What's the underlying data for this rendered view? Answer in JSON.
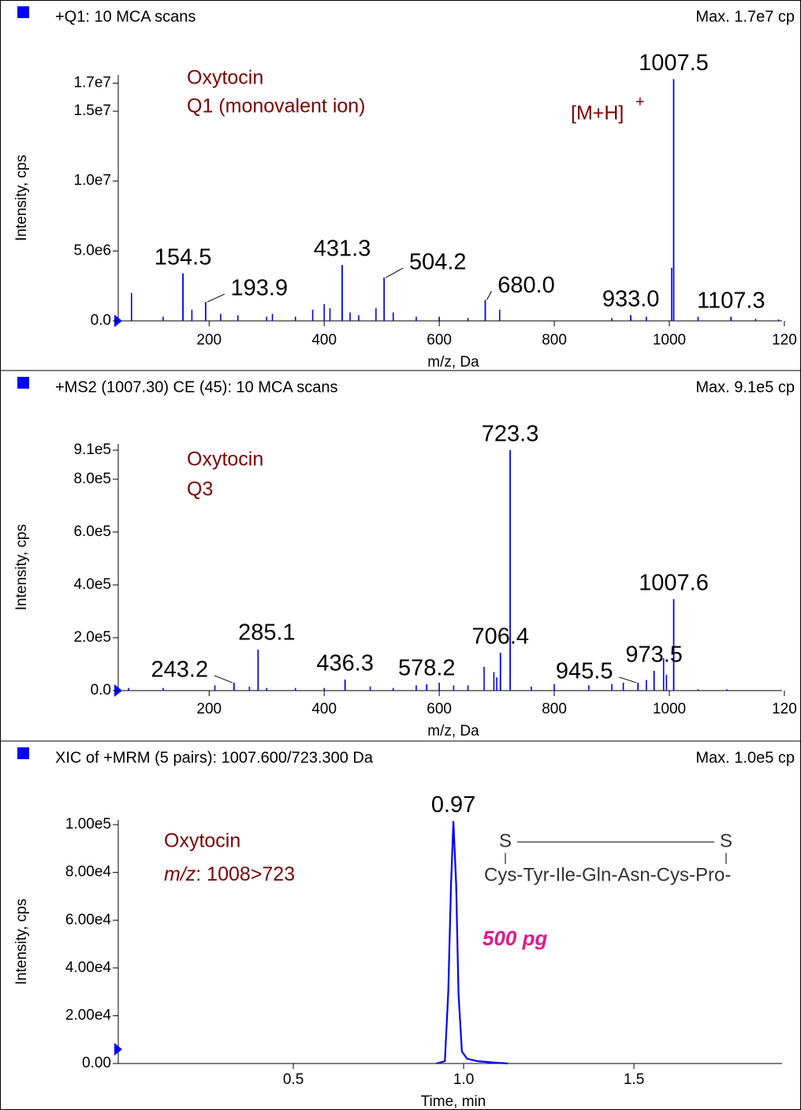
{
  "chart_data": [
    {
      "type": "spectrum",
      "header": "+Q1: 10 MCA scans",
      "max_label": "Max. 1.7e7 cp",
      "ylabel": "Intensity, cps",
      "xlabel": "m/z, Da",
      "color": "#0000ff",
      "xlim": [
        42,
        1196
      ],
      "ylim": [
        0,
        17600000
      ],
      "xticks": [
        200,
        400,
        600,
        800,
        1000,
        {
          "value": 1200,
          "label": "120"
        }
      ],
      "yticks": [
        {
          "value": 0,
          "label": "0.0"
        },
        {
          "value": 5000000,
          "label": "5.0e6"
        },
        {
          "value": 10000000,
          "label": "1.0e7"
        },
        {
          "value": 15000000,
          "label": "1.5e7"
        },
        {
          "value": 17000000,
          "label": "1.7e7"
        }
      ],
      "annotations": [
        "Oxytocin",
        "Q1 (monovalent ion)"
      ],
      "ion_label": "[M+H]",
      "ion_charge": "+",
      "peaks": {
        "x": [
          65,
          120,
          170,
          220,
          250,
          300,
          310,
          350,
          380,
          400,
          410,
          445,
          460,
          490,
          520,
          560,
          600,
          650,
          705,
          900,
          960,
          1004,
          1050,
          1150,
          1190
        ],
        "values": [
          2000000,
          300000,
          800000,
          500000,
          400000,
          300000,
          500000,
          300000,
          800000,
          1200000,
          900000,
          600000,
          400000,
          900000,
          600000,
          300000,
          300000,
          200000,
          800000,
          200000,
          300000,
          3800000,
          300000,
          150000,
          100000
        ]
      },
      "labeled_peaks": [
        {
          "x": 1007.5,
          "value": 17300000,
          "label": "1007.5"
        },
        {
          "x": 154.5,
          "value": 3400000,
          "label": "154.5"
        },
        {
          "x": 193.9,
          "value": 1350000,
          "label": "193.9"
        },
        {
          "x": 431.3,
          "value": 4000000,
          "label": "431.3"
        },
        {
          "x": 504.2,
          "value": 3100000,
          "label": "504.2"
        },
        {
          "x": 680.0,
          "value": 1500000,
          "label": "680.0"
        },
        {
          "x": 933.0,
          "value": 400000,
          "label": "933.0"
        },
        {
          "x": 1107.3,
          "value": 300000,
          "label": "1107.3"
        }
      ]
    },
    {
      "type": "spectrum",
      "header": "+MS2 (1007.30) CE (45): 10 MCA scans",
      "max_label": "Max. 9.1e5 cp",
      "ylabel": "Intensity, cps",
      "xlabel": "m/z, Da",
      "color": "#0000ff",
      "xlim": [
        42,
        1196
      ],
      "ylim": [
        0,
        934000
      ],
      "xticks": [
        200,
        400,
        600,
        800,
        1000,
        {
          "value": 1200,
          "label": "120"
        }
      ],
      "yticks": [
        {
          "value": 0,
          "label": "0.0"
        },
        {
          "value": 200000,
          "label": "2.0e5"
        },
        {
          "value": 400000,
          "label": "4.0e5"
        },
        {
          "value": 600000,
          "label": "6.0e5"
        },
        {
          "value": 800000,
          "label": "8.0e5"
        },
        {
          "value": 910000,
          "label": "9.1e5"
        }
      ],
      "annotations": [
        "Oxytocin",
        "Q3"
      ],
      "peaks": {
        "x": [
          60,
          120,
          210,
          270,
          300,
          350,
          400,
          480,
          520,
          560,
          600,
          625,
          650,
          678,
          695,
          700,
          760,
          800,
          860,
          900,
          920,
          960,
          990,
          995,
          1050,
          1100
        ],
        "values": [
          10000,
          10000,
          20000,
          15000,
          10000,
          10000,
          10000,
          15000,
          10000,
          20000,
          30000,
          20000,
          20000,
          90000,
          70000,
          50000,
          15000,
          25000,
          20000,
          25000,
          30000,
          40000,
          122000,
          60000,
          5000,
          5000
        ]
      },
      "labeled_peaks": [
        {
          "x": 723.3,
          "value": 910000,
          "label": "723.3"
        },
        {
          "x": 1007.6,
          "value": 346000,
          "label": "1007.6"
        },
        {
          "x": 285.1,
          "value": 155000,
          "label": "285.1"
        },
        {
          "x": 706.4,
          "value": 143000,
          "label": "706.4"
        },
        {
          "x": 973.5,
          "value": 75000,
          "label": "973.5"
        },
        {
          "x": 945.5,
          "value": 30000,
          "label": "945.5"
        },
        {
          "x": 578.2,
          "value": 24000,
          "label": "578.2"
        },
        {
          "x": 436.3,
          "value": 42000,
          "label": "436.3"
        },
        {
          "x": 243.2,
          "value": 30000,
          "label": "243.2"
        }
      ]
    },
    {
      "type": "line",
      "header": "XIC of +MRM (5 pairs): 1007.600/723.300 Da",
      "max_label": "Max. 1.0e5 cp",
      "ylabel": "Intensity, cps",
      "xlabel": "Time, min",
      "color": "#0000ff",
      "xlim": [
        -0.014,
        1.935
      ],
      "ylim": [
        0,
        102000
      ],
      "xticks": [
        0.5,
        {
          "value": 1,
          "label": "1.0"
        },
        1.5
      ],
      "yticks": [
        {
          "value": 0,
          "label": "0.00"
        },
        {
          "value": 20000,
          "label": "2.00e4"
        },
        {
          "value": 40000,
          "label": "4.00e4"
        },
        {
          "value": 60000,
          "label": "6.00e4"
        },
        {
          "value": 80000,
          "label": "8.00e4"
        },
        {
          "value": 100000,
          "label": "1.00e5"
        }
      ],
      "x": [
        0.92,
        0.945,
        0.955,
        0.963,
        0.97,
        0.978,
        0.985,
        0.995,
        1.01,
        1.04,
        1.08,
        1.13
      ],
      "values": [
        0,
        1000,
        30000,
        75000,
        101500,
        75000,
        29000,
        5000,
        2000,
        1000,
        500,
        0
      ],
      "peak_label": "0.97",
      "annotations": [
        "Oxytocin"
      ],
      "mz_italic": "m/z",
      "mz_rest": ": 1008>723",
      "amount": "500 pg",
      "structure": {
        "s_left": "S",
        "s_right": "S",
        "sequence": "Cys-Tyr-Ile-Gln-Asn-Cys-Pro-"
      }
    }
  ]
}
